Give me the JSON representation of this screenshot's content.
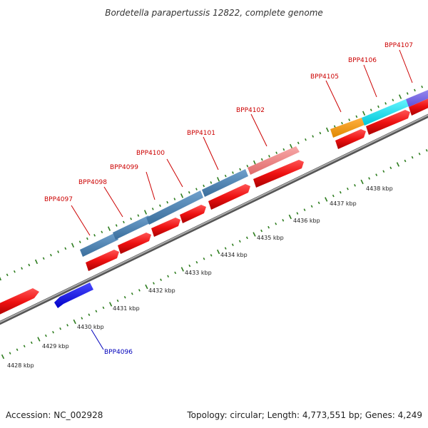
{
  "title": "Bordetella parapertussis 12822, complete genome",
  "footer": {
    "accession": "Accession: NC_002928",
    "summary": "Topology: circular; Length: 4,773,551 bp; Genes: 4,249"
  },
  "kbp_labels": [
    "4428 kbp",
    "4429 kbp",
    "4430 kbp",
    "4431 kbp",
    "4432 kbp",
    "4433 kbp",
    "4434 kbp",
    "4435 kbp",
    "4436 kbp",
    "4437 kbp",
    "4438 kbp"
  ],
  "gene_labels": [
    "BPP4096",
    "BPP4097",
    "BPP4098",
    "BPP4099",
    "BPP4100",
    "BPP4101",
    "BPP4102",
    "BPP4105",
    "BPP4106",
    "BPP4107"
  ],
  "colors": {
    "backbone": "#888888",
    "tick": "#2e7d1f",
    "cds": "#ee1111",
    "steelblue": "#4682b4",
    "pink": "#f08080",
    "orange": "#ff9900",
    "cyan": "#00e5ee",
    "purple": "#7b68ee",
    "blue": "#1c1cdc",
    "label_red": "#cc0000",
    "label_blue": "#0000bb"
  }
}
